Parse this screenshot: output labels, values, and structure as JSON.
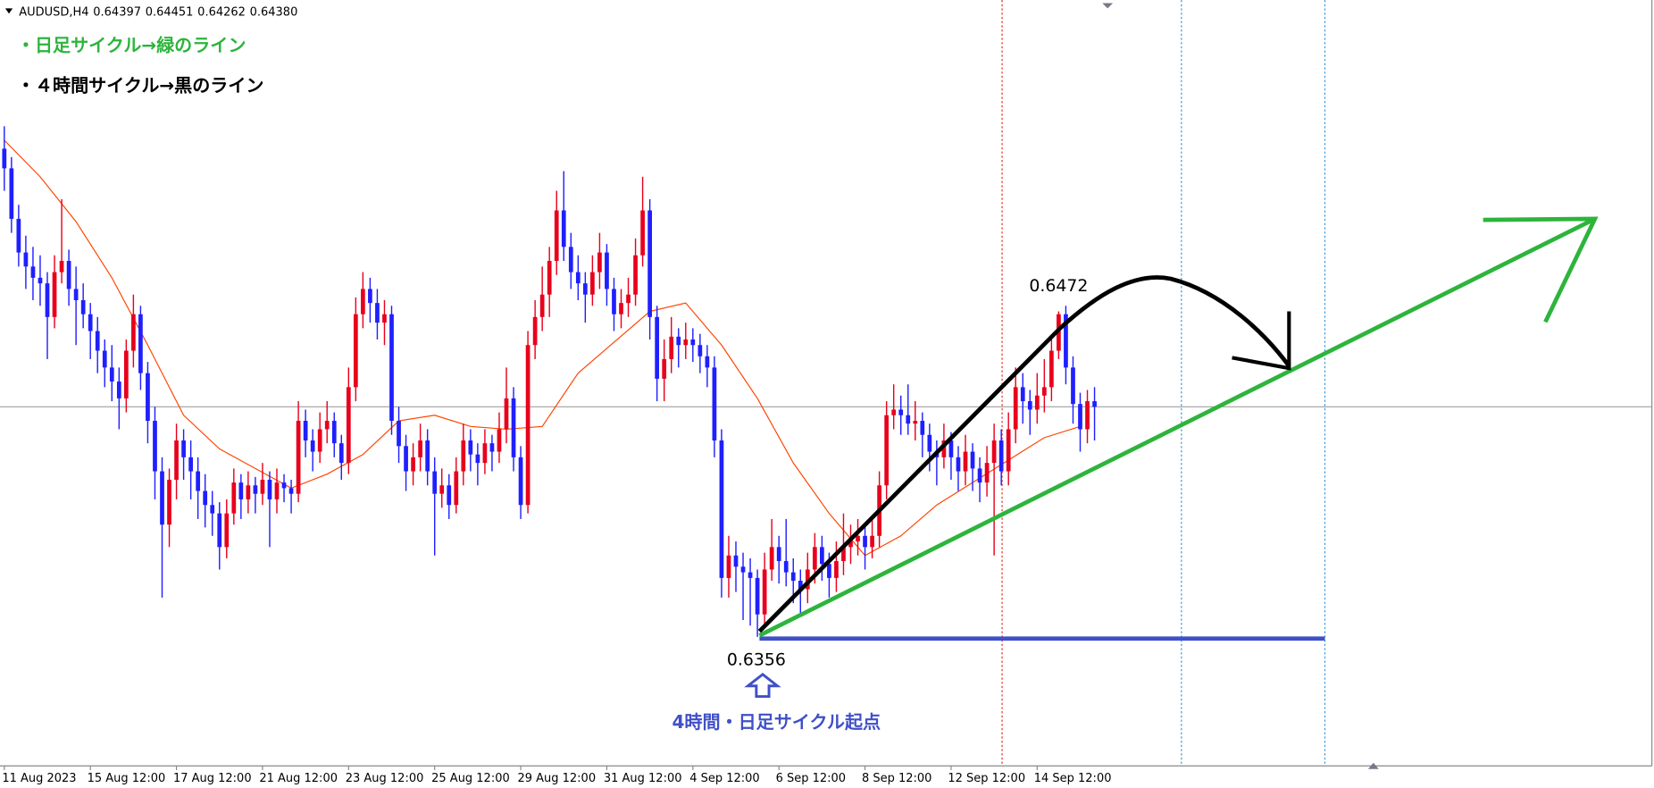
{
  "chart_data": {
    "type": "candlestick",
    "header": {
      "symbol": "AUDUSD,H4",
      "ohlc": [
        0.64397,
        0.64451,
        0.64262,
        {
          "value": 0.6438,
          "label": "0.64380"
        }
      ]
    },
    "legend_lines": [
      "・日足サイクル→緑のライン",
      "・４時間サイクル→黒のライン"
    ],
    "annotations": {
      "high": 0.6472,
      "low": 0.6356,
      "origin_text": "4時間・日足サイクル起点"
    },
    "up_color": "#e8001c",
    "down_color": "#1f1fff",
    "xlim": [
      -0.6,
      230
    ],
    "ylim": [
      0.631,
      0.6583
    ],
    "xticks": [
      {
        "value": 0,
        "label": "11 Aug 2023"
      },
      {
        "value": 12,
        "label": "15 Aug 12:00"
      },
      {
        "value": 24,
        "label": "17 Aug 12:00"
      },
      {
        "value": 36,
        "label": "21 Aug 12:00"
      },
      {
        "value": 48,
        "label": "23 Aug 12:00"
      },
      {
        "value": 60,
        "label": "25 Aug 12:00"
      },
      {
        "value": 72,
        "label": "29 Aug 12:00"
      },
      {
        "value": 84,
        "label": "31 Aug 12:00"
      },
      {
        "value": 96,
        "label": "4 Sep 12:00"
      },
      {
        "value": 108,
        "label": "6 Sep 12:00"
      },
      {
        "value": 120,
        "label": "8 Sep 12:00"
      },
      {
        "value": 132,
        "label": "12 Sep 12:00"
      },
      {
        "value": 144,
        "label": "14 Sep 12:00"
      }
    ],
    "moving_average": {
      "color": "#ff4500",
      "x": [
        0,
        5,
        10,
        15,
        20,
        25,
        30,
        35,
        40,
        45,
        50,
        55,
        60,
        65,
        70,
        75,
        80,
        85,
        90,
        95,
        100,
        105,
        110,
        115,
        120,
        125,
        130,
        135,
        140,
        145,
        150
      ],
      "values": [
        0.6533,
        0.652,
        0.6504,
        0.6484,
        0.646,
        0.6435,
        0.6423,
        0.6416,
        0.6409,
        0.6414,
        0.6421,
        0.6433,
        0.6435,
        0.6431,
        0.643,
        0.6431,
        0.645,
        0.6461,
        0.6472,
        0.6475,
        0.646,
        0.6441,
        0.6418,
        0.64,
        0.6385,
        0.6392,
        0.6403,
        0.6411,
        0.6419,
        0.6427,
        0.6431
      ]
    },
    "candles": [
      [
        0.653,
        0.6538,
        0.6515,
        0.6523
      ],
      [
        0.6523,
        0.6527,
        0.65,
        0.6505
      ],
      [
        0.6505,
        0.651,
        0.6488,
        0.6493
      ],
      [
        0.6493,
        0.6499,
        0.648,
        0.6488
      ],
      [
        0.6488,
        0.6495,
        0.6476,
        0.6484
      ],
      [
        0.6484,
        0.6492,
        0.6474,
        0.6482
      ],
      [
        0.6482,
        0.6486,
        0.6455,
        0.647
      ],
      [
        0.647,
        0.6492,
        0.6466,
        0.6486
      ],
      [
        0.6486,
        0.6512,
        0.6482,
        0.649
      ],
      [
        0.649,
        0.6494,
        0.6474,
        0.648
      ],
      [
        0.648,
        0.6488,
        0.646,
        0.6476
      ],
      [
        0.6476,
        0.6482,
        0.6466,
        0.6471
      ],
      [
        0.6471,
        0.6475,
        0.6455,
        0.6465
      ],
      [
        0.6465,
        0.647,
        0.645,
        0.6458
      ],
      [
        0.6458,
        0.6462,
        0.6445,
        0.6452
      ],
      [
        0.6452,
        0.646,
        0.644,
        0.6447
      ],
      [
        0.6447,
        0.6452,
        0.643,
        0.6441
      ],
      [
        0.6441,
        0.6462,
        0.6436,
        0.6458
      ],
      [
        0.6458,
        0.6478,
        0.6452,
        0.6471
      ],
      [
        0.6471,
        0.6474,
        0.6444,
        0.645
      ],
      [
        0.645,
        0.6454,
        0.6425,
        0.6433
      ],
      [
        0.6433,
        0.6438,
        0.6405,
        0.6415
      ],
      [
        0.6415,
        0.642,
        0.637,
        0.6396
      ],
      [
        0.6396,
        0.6416,
        0.6388,
        0.6412
      ],
      [
        0.6412,
        0.6432,
        0.6405,
        0.6426
      ],
      [
        0.6426,
        0.643,
        0.6412,
        0.642
      ],
      [
        0.642,
        0.6426,
        0.6405,
        0.6415
      ],
      [
        0.6415,
        0.642,
        0.6398,
        0.6408
      ],
      [
        0.6408,
        0.6414,
        0.6395,
        0.6403
      ],
      [
        0.6403,
        0.6408,
        0.6392,
        0.64
      ],
      [
        0.64,
        0.6404,
        0.638,
        0.6388
      ],
      [
        0.6388,
        0.6405,
        0.6384,
        0.64
      ],
      [
        0.64,
        0.6416,
        0.6396,
        0.6411
      ],
      [
        0.6411,
        0.6414,
        0.6398,
        0.6405
      ],
      [
        0.6405,
        0.6415,
        0.64,
        0.641
      ],
      [
        0.641,
        0.6413,
        0.64,
        0.6407
      ],
      [
        0.6407,
        0.6418,
        0.6403,
        0.6412
      ],
      [
        0.6412,
        0.6415,
        0.6388,
        0.6405
      ],
      [
        0.6405,
        0.6416,
        0.64,
        0.6411
      ],
      [
        0.6411,
        0.6414,
        0.6404,
        0.6409
      ],
      [
        0.6409,
        0.6412,
        0.64,
        0.6407
      ],
      [
        0.6407,
        0.644,
        0.6404,
        0.6433
      ],
      [
        0.6433,
        0.6437,
        0.642,
        0.6426
      ],
      [
        0.6426,
        0.643,
        0.6415,
        0.6422
      ],
      [
        0.6422,
        0.6436,
        0.6418,
        0.643
      ],
      [
        0.643,
        0.644,
        0.6425,
        0.6433
      ],
      [
        0.6433,
        0.6436,
        0.642,
        0.6425
      ],
      [
        0.6425,
        0.6428,
        0.6412,
        0.6418
      ],
      [
        0.6418,
        0.6452,
        0.6414,
        0.6445
      ],
      [
        0.6445,
        0.6477,
        0.644,
        0.6471
      ],
      [
        0.6471,
        0.6486,
        0.6466,
        0.648
      ],
      [
        0.648,
        0.6484,
        0.6468,
        0.6475
      ],
      [
        0.6475,
        0.648,
        0.6462,
        0.6468
      ],
      [
        0.6468,
        0.6476,
        0.646,
        0.6471
      ],
      [
        0.6471,
        0.6474,
        0.6428,
        0.6433
      ],
      [
        0.6433,
        0.6438,
        0.6418,
        0.6424
      ],
      [
        0.6424,
        0.6428,
        0.6408,
        0.6415
      ],
      [
        0.6415,
        0.6425,
        0.641,
        0.642
      ],
      [
        0.642,
        0.6432,
        0.6415,
        0.6426
      ],
      [
        0.6426,
        0.643,
        0.641,
        0.6415
      ],
      [
        0.6415,
        0.642,
        0.6385,
        0.6407
      ],
      [
        0.6407,
        0.6416,
        0.6402,
        0.641
      ],
      [
        0.641,
        0.6414,
        0.6398,
        0.6403
      ],
      [
        0.6403,
        0.642,
        0.64,
        0.6415
      ],
      [
        0.6415,
        0.6432,
        0.641,
        0.6426
      ],
      [
        0.6426,
        0.643,
        0.6415,
        0.6421
      ],
      [
        0.6421,
        0.6425,
        0.641,
        0.6418
      ],
      [
        0.6418,
        0.643,
        0.6414,
        0.6425
      ],
      [
        0.6425,
        0.6428,
        0.6415,
        0.6422
      ],
      [
        0.6422,
        0.6436,
        0.6418,
        0.643
      ],
      [
        0.643,
        0.6452,
        0.6425,
        0.6441
      ],
      [
        0.6441,
        0.6445,
        0.6415,
        0.642
      ],
      [
        0.642,
        0.6424,
        0.6398,
        0.6403
      ],
      [
        0.6403,
        0.6465,
        0.64,
        0.646
      ],
      [
        0.646,
        0.6476,
        0.6455,
        0.647
      ],
      [
        0.647,
        0.6488,
        0.6465,
        0.6478
      ],
      [
        0.6478,
        0.6495,
        0.647,
        0.649
      ],
      [
        0.649,
        0.6515,
        0.6485,
        0.6508
      ],
      [
        0.6508,
        0.6522,
        0.649,
        0.6495
      ],
      [
        0.6495,
        0.65,
        0.648,
        0.6486
      ],
      [
        0.6486,
        0.6492,
        0.6476,
        0.6482
      ],
      [
        0.6482,
        0.6486,
        0.6468,
        0.6478
      ],
      [
        0.6478,
        0.6492,
        0.6474,
        0.6486
      ],
      [
        0.6486,
        0.65,
        0.648,
        0.6493
      ],
      [
        0.6493,
        0.6496,
        0.6474,
        0.648
      ],
      [
        0.648,
        0.6484,
        0.6465,
        0.6471
      ],
      [
        0.6471,
        0.648,
        0.6466,
        0.6475
      ],
      [
        0.6475,
        0.6484,
        0.647,
        0.6478
      ],
      [
        0.6478,
        0.6498,
        0.6474,
        0.6492
      ],
      [
        0.6492,
        0.652,
        0.6488,
        0.6508
      ],
      [
        0.6508,
        0.6512,
        0.6462,
        0.647
      ],
      [
        0.647,
        0.6474,
        0.644,
        0.6448
      ],
      [
        0.6448,
        0.6462,
        0.644,
        0.6455
      ],
      [
        0.6455,
        0.647,
        0.645,
        0.6463
      ],
      [
        0.6463,
        0.6466,
        0.6452,
        0.646
      ],
      [
        0.646,
        0.6468,
        0.6455,
        0.6462
      ],
      [
        0.6462,
        0.6466,
        0.6454,
        0.646
      ],
      [
        0.646,
        0.6464,
        0.645,
        0.6456
      ],
      [
        0.6456,
        0.646,
        0.6445,
        0.6452
      ],
      [
        0.6452,
        0.6456,
        0.642,
        0.6426
      ],
      [
        0.6426,
        0.643,
        0.637,
        0.6377
      ],
      [
        0.6377,
        0.6392,
        0.637,
        0.6385
      ],
      [
        0.6385,
        0.639,
        0.6372,
        0.6381
      ],
      [
        0.6381,
        0.6386,
        0.6362,
        0.6379
      ],
      [
        0.6379,
        0.6384,
        0.636,
        0.6377
      ],
      [
        0.6377,
        0.638,
        0.6356,
        0.6364
      ],
      [
        0.6364,
        0.6386,
        0.636,
        0.638
      ],
      [
        0.638,
        0.6398,
        0.6376,
        0.6388
      ],
      [
        0.6388,
        0.6392,
        0.6375,
        0.6383
      ],
      [
        0.6383,
        0.6398,
        0.6374,
        0.6379
      ],
      [
        0.6379,
        0.6384,
        0.6368,
        0.6376
      ],
      [
        0.6376,
        0.638,
        0.6364,
        0.6373
      ],
      [
        0.6373,
        0.6386,
        0.6368,
        0.638
      ],
      [
        0.638,
        0.6393,
        0.6375,
        0.6388
      ],
      [
        0.6388,
        0.6392,
        0.6376,
        0.6382
      ],
      [
        0.6382,
        0.6386,
        0.637,
        0.6377
      ],
      [
        0.6377,
        0.639,
        0.6372,
        0.6383
      ],
      [
        0.6383,
        0.64,
        0.6378,
        0.6388
      ],
      [
        0.6388,
        0.6396,
        0.6382,
        0.639
      ],
      [
        0.639,
        0.6398,
        0.6385,
        0.6392
      ],
      [
        0.6392,
        0.6396,
        0.638,
        0.6388
      ],
      [
        0.6388,
        0.6398,
        0.6384,
        0.6392
      ],
      [
        0.6392,
        0.6415,
        0.6388,
        0.641
      ],
      [
        0.641,
        0.644,
        0.6405,
        0.6435
      ],
      [
        0.6435,
        0.6446,
        0.643,
        0.6437
      ],
      [
        0.6437,
        0.6442,
        0.6428,
        0.6435
      ],
      [
        0.6435,
        0.6446,
        0.6428,
        0.6432
      ],
      [
        0.6432,
        0.644,
        0.6426,
        0.6433
      ],
      [
        0.6433,
        0.6436,
        0.642,
        0.6428
      ],
      [
        0.6428,
        0.6432,
        0.6415,
        0.6422
      ],
      [
        0.6422,
        0.6426,
        0.641,
        0.642
      ],
      [
        0.642,
        0.6432,
        0.6416,
        0.6426
      ],
      [
        0.6426,
        0.6429,
        0.6412,
        0.642
      ],
      [
        0.642,
        0.6424,
        0.6408,
        0.6415
      ],
      [
        0.6415,
        0.6428,
        0.641,
        0.6422
      ],
      [
        0.6422,
        0.6425,
        0.6408,
        0.6416
      ],
      [
        0.6416,
        0.642,
        0.6404,
        0.6411
      ],
      [
        0.6411,
        0.6424,
        0.6406,
        0.6418
      ],
      [
        0.6418,
        0.6432,
        0.6385,
        0.6426
      ],
      [
        0.6426,
        0.643,
        0.641,
        0.6415
      ],
      [
        0.6415,
        0.6436,
        0.641,
        0.643
      ],
      [
        0.643,
        0.6452,
        0.6425,
        0.6445
      ],
      [
        0.6445,
        0.645,
        0.6432,
        0.644
      ],
      [
        0.644,
        0.6444,
        0.6428,
        0.6437
      ],
      [
        0.6437,
        0.645,
        0.6432,
        0.6442
      ],
      [
        0.6442,
        0.6455,
        0.6436,
        0.6445
      ],
      [
        0.6445,
        0.6462,
        0.644,
        0.6458
      ],
      [
        0.6458,
        0.6472,
        0.6455,
        0.6471
      ],
      [
        0.6471,
        0.6474,
        0.6446,
        0.6452
      ],
      [
        0.6452,
        0.6456,
        0.6432,
        0.6439
      ],
      [
        0.6439,
        0.6443,
        0.6422,
        0.643
      ],
      [
        0.643,
        0.6444,
        0.6425,
        0.644
      ],
      [
        0.644,
        0.6445,
        0.6426,
        0.6438
      ]
    ]
  }
}
